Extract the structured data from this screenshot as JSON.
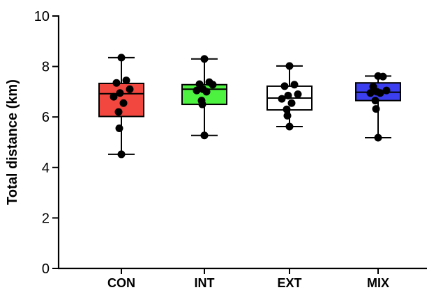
{
  "chart_data": {
    "type": "box",
    "ylabel": "Total distance (km)",
    "xlabel": "",
    "ylim": [
      0,
      10
    ],
    "yticks": [
      0,
      2,
      4,
      6,
      8,
      10
    ],
    "grid": false,
    "categories": [
      "CON",
      "INT",
      "EXT",
      "MIX"
    ],
    "boxes": [
      {
        "name": "CON",
        "color": "#f2473f",
        "min": 4.52,
        "q1": 6.02,
        "median": 6.92,
        "q3": 7.33,
        "max": 8.35,
        "points": [
          8.35,
          7.45,
          7.35,
          7.1,
          6.95,
          6.8,
          6.55,
          6.2,
          5.55,
          4.52
        ]
      },
      {
        "name": "INT",
        "color": "#4cf23f",
        "min": 5.27,
        "q1": 6.5,
        "median": 7.1,
        "q3": 7.28,
        "max": 8.3,
        "points": [
          8.3,
          7.38,
          7.3,
          7.28,
          7.1,
          7.05,
          7.0,
          6.65,
          6.5,
          5.27
        ]
      },
      {
        "name": "EXT",
        "color": "#ffffff",
        "min": 5.62,
        "q1": 6.28,
        "median": 6.75,
        "q3": 7.22,
        "max": 8.02,
        "points": [
          8.02,
          7.28,
          7.22,
          6.9,
          6.85,
          6.72,
          6.55,
          6.3,
          6.05,
          5.62
        ]
      },
      {
        "name": "MIX",
        "color": "#3b3ff0",
        "min": 5.18,
        "q1": 6.65,
        "median": 6.98,
        "q3": 7.35,
        "max": 7.62,
        "points": [
          7.62,
          7.6,
          7.2,
          7.05,
          7.0,
          6.95,
          6.95,
          6.65,
          6.32,
          5.18
        ]
      }
    ]
  }
}
